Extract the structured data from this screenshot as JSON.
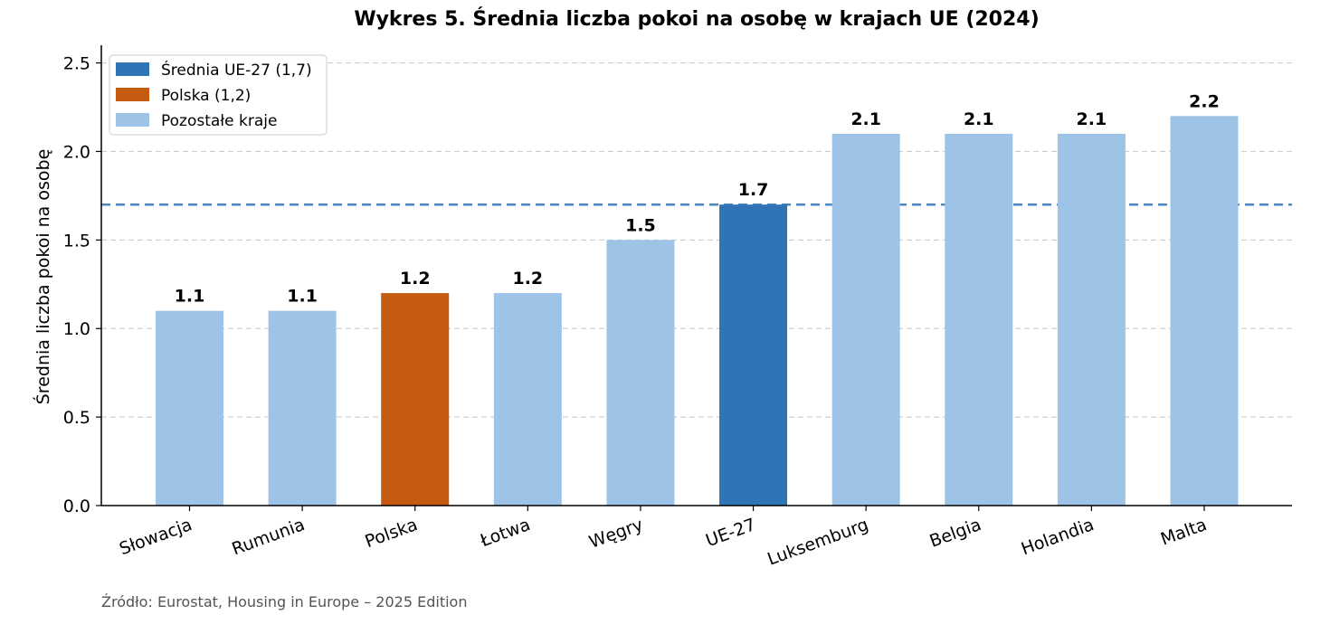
{
  "chart_data": {
    "type": "bar",
    "title": "Wykres 5. Średnia liczba pokoi na osobę w krajach UE (2024)",
    "xlabel": "",
    "ylabel": "Średnia liczba pokoi na osobę",
    "ylim": [
      0,
      2.6
    ],
    "yticks": [
      0.0,
      0.5,
      1.0,
      1.5,
      2.0,
      2.5
    ],
    "grid": "horizontal dashed",
    "categories": [
      "Słowacja",
      "Rumunia",
      "Polska",
      "Łotwa",
      "Węgry",
      "UE-27",
      "Luksemburg",
      "Belgia",
      "Holandia",
      "Malta"
    ],
    "values": [
      1.1,
      1.1,
      1.2,
      1.2,
      1.5,
      1.7,
      2.1,
      2.1,
      2.1,
      2.2
    ],
    "value_labels": [
      "1.1",
      "1.1",
      "1.2",
      "1.2",
      "1.5",
      "1.7",
      "2.1",
      "2.1",
      "2.1",
      "2.2"
    ],
    "bar_groups": [
      "other",
      "other",
      "poland",
      "other",
      "other",
      "eu",
      "other",
      "other",
      "other",
      "other"
    ],
    "colors": {
      "eu": "#2f74b5",
      "poland": "#c55a11",
      "other": "#9dc3e6",
      "reference_line": "#4a8ac4"
    },
    "reference_line": {
      "value": 1.7,
      "style": "dashed"
    },
    "legend": {
      "placement": "top-left",
      "entries": [
        {
          "label": "Średnia UE-27 (1,7)",
          "group": "eu"
        },
        {
          "label": "Polska (1,2)",
          "group": "poland"
        },
        {
          "label": "Pozostałe kraje",
          "group": "other"
        }
      ]
    },
    "source": "Źródło: Eurostat, Housing in Europe – 2025 Edition"
  }
}
